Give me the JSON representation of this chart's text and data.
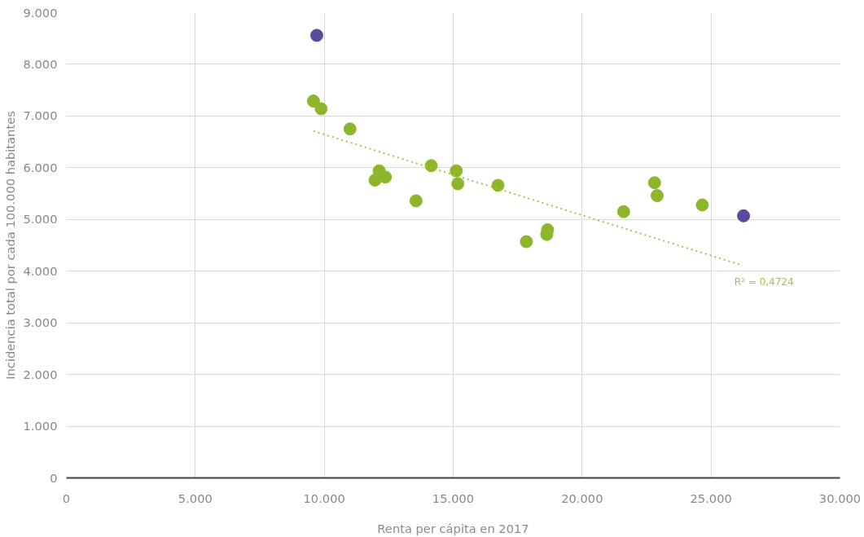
{
  "chart_data": {
    "type": "scatter",
    "xlabel": "Renta per cápita en 2017",
    "ylabel": "Incidencia total por cada 100.000 habitantes",
    "xlim": [
      0,
      30000
    ],
    "ylim": [
      0,
      9000
    ],
    "xticks": [
      {
        "value": 0,
        "label": "0"
      },
      {
        "value": 5000,
        "label": "5.000"
      },
      {
        "value": 10000,
        "label": "10.000"
      },
      {
        "value": 15000,
        "label": "15.000"
      },
      {
        "value": 20000,
        "label": "20.000"
      },
      {
        "value": 25000,
        "label": "25.000"
      },
      {
        "value": 30000,
        "label": "30.000"
      }
    ],
    "yticks": [
      {
        "value": 0,
        "label": "0"
      },
      {
        "value": 1000,
        "label": "1.000"
      },
      {
        "value": 2000,
        "label": "2.000"
      },
      {
        "value": 3000,
        "label": "3.000"
      },
      {
        "value": 4000,
        "label": "4.000"
      },
      {
        "value": 5000,
        "label": "5.000"
      },
      {
        "value": 6000,
        "label": "6.000"
      },
      {
        "value": 7000,
        "label": "7.000"
      },
      {
        "value": 8000,
        "label": "8.000"
      },
      {
        "value": 9000,
        "label": "9.000"
      }
    ],
    "grid": true,
    "marker": "circle",
    "series": [
      {
        "color": "#8db62a",
        "x": [
          9580,
          9880,
          11000,
          12130,
          11970,
          12370,
          13560,
          14150,
          15120,
          15180,
          16740,
          17840,
          18630,
          18660,
          21610,
          22810,
          22910,
          24660
        ],
        "values": [
          7290,
          7140,
          6750,
          5940,
          5760,
          5820,
          5360,
          6040,
          5940,
          5690,
          5660,
          4570,
          4710,
          4800,
          5150,
          5710,
          5460,
          5280
        ]
      },
      {
        "color": "#5b4a9b",
        "x": [
          9710,
          26260
        ],
        "values": [
          8560,
          5070
        ]
      },
      {
        "type": "line",
        "color": "#a8c24a",
        "line_style": "dotted",
        "marker": "none",
        "x": [
          9580,
          26220
        ],
        "values": [
          6710,
          4110
        ]
      }
    ],
    "annotations": [
      "R² = 0,4724"
    ]
  }
}
